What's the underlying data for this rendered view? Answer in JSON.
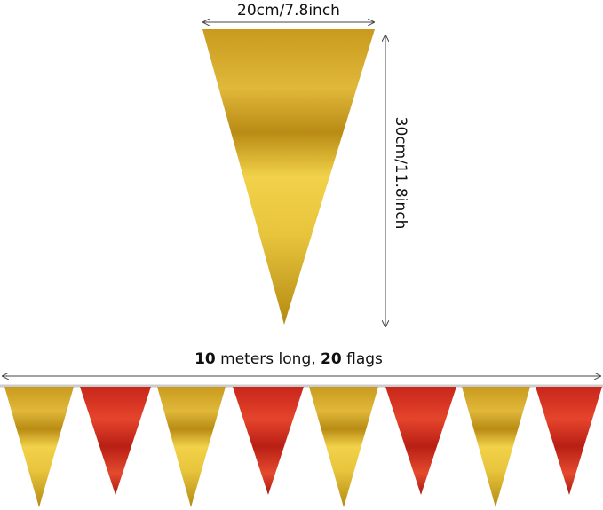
{
  "width_label": "20cm/7.8inch",
  "height_label": "30cm/11.8inch",
  "banner_label": [
    "10",
    " meters long, ",
    "20",
    " flags"
  ]
}
